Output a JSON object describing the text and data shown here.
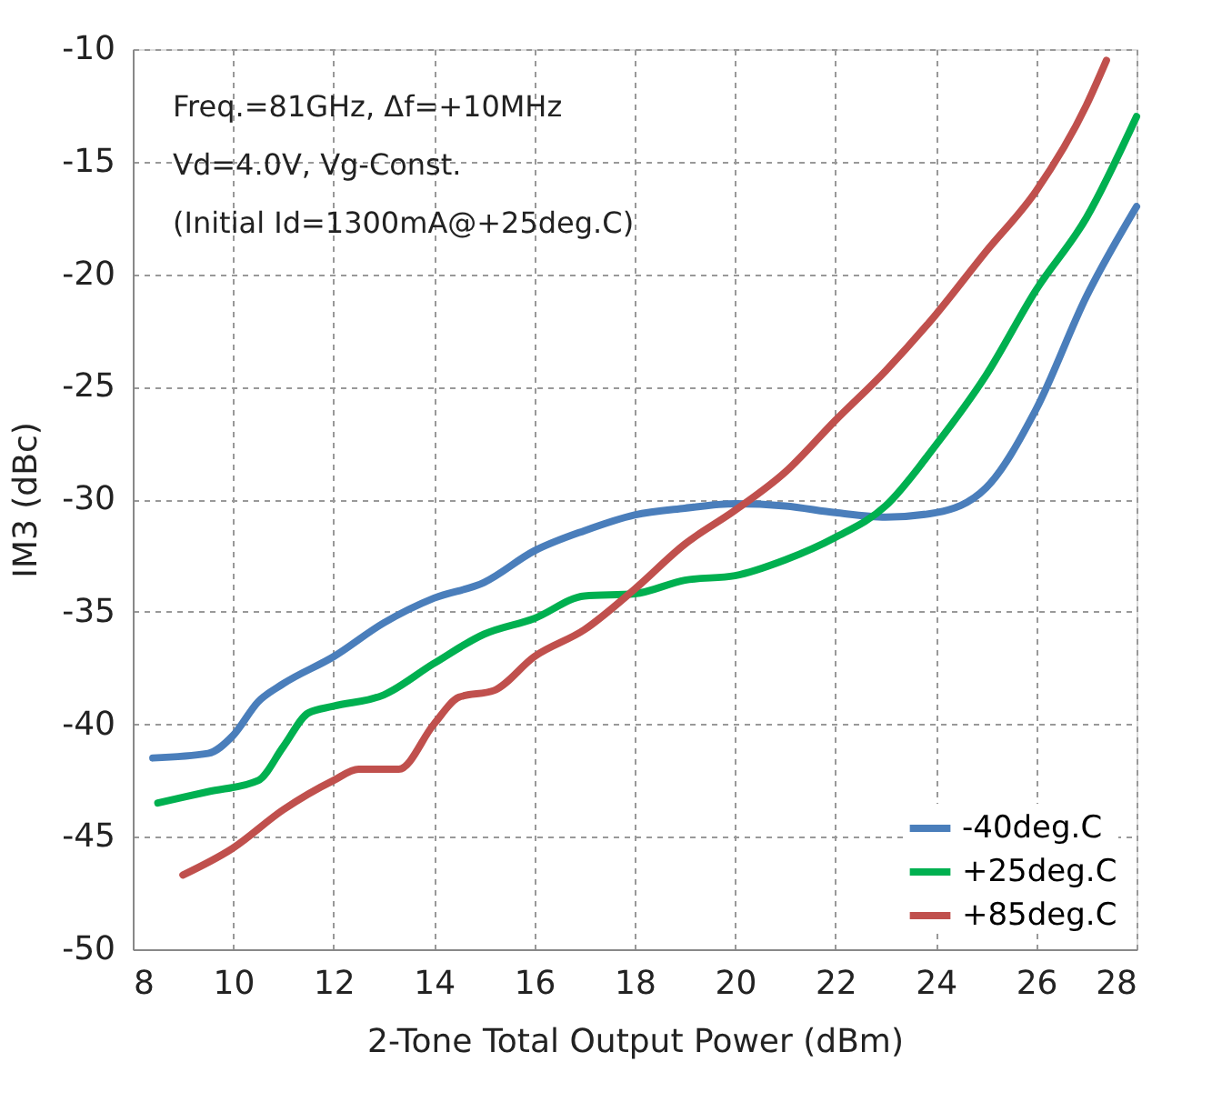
{
  "chart_data": {
    "type": "line",
    "xlabel": "2-Tone Total Output Power (dBm)",
    "ylabel": "IM3 (dBc)",
    "annotations": [
      "Freq.=81GHz, Δf=+10MHz",
      "Vd=4.0V, Vg-Const.",
      "(Initial Id=1300mA@+25deg.C)"
    ],
    "xlim": [
      8,
      28
    ],
    "xticks": [
      8,
      10,
      12,
      14,
      16,
      18,
      20,
      22,
      24,
      26,
      28
    ],
    "ylim": [
      -50,
      -10
    ],
    "yticks": [
      -50,
      -45,
      -40,
      -35,
      -30,
      -25,
      -20,
      -15,
      -10
    ],
    "grid": true,
    "legend": "bottom right",
    "marker": "none",
    "line_style": "solid",
    "series": [
      {
        "name": "-40deg.C",
        "color": "#4a7ebb",
        "x": [
          8.4,
          9.5,
          10,
          10.5,
          11,
          12,
          13,
          14,
          15,
          16,
          17,
          18,
          19,
          20,
          21,
          22,
          23,
          24,
          25,
          26,
          27,
          28
        ],
        "values": [
          -41.5,
          -41.3,
          -40.5,
          -39,
          -38.2,
          -37,
          -35.5,
          -34.4,
          -33.7,
          -32.3,
          -31.4,
          -30.7,
          -30.4,
          -30.2,
          -30.3,
          -30.6,
          -30.8,
          -30.6,
          -29.5,
          -26,
          -21,
          -17
        ]
      },
      {
        "name": "+25deg.C",
        "color": "#00b050",
        "x": [
          8.5,
          9.5,
          10.5,
          11,
          11.5,
          12,
          13,
          14,
          15,
          16,
          17,
          18,
          19,
          20,
          21,
          22,
          23,
          24,
          25,
          26,
          27,
          28
        ],
        "values": [
          -43.5,
          -43,
          -42.5,
          -41,
          -39.5,
          -39.2,
          -38.7,
          -37.3,
          -36,
          -35.3,
          -34.3,
          -34.2,
          -33.6,
          -33.4,
          -32.7,
          -31.7,
          -30.3,
          -27.6,
          -24.5,
          -20.7,
          -17.5,
          -13
        ]
      },
      {
        "name": "+85deg.C",
        "color": "#c0504d",
        "x": [
          9,
          10,
          11,
          12,
          12.5,
          13.3,
          14,
          14.5,
          15.2,
          16,
          17,
          18,
          19,
          20,
          21,
          22,
          23,
          24,
          25,
          26,
          27,
          27.4
        ],
        "values": [
          -46.7,
          -45.5,
          -43.8,
          -42.5,
          -42,
          -42,
          -40,
          -38.8,
          -38.5,
          -37,
          -35.8,
          -34,
          -32,
          -30.5,
          -28.8,
          -26.5,
          -24.3,
          -21.8,
          -19,
          -16.3,
          -12.5,
          -10.5
        ]
      }
    ]
  }
}
